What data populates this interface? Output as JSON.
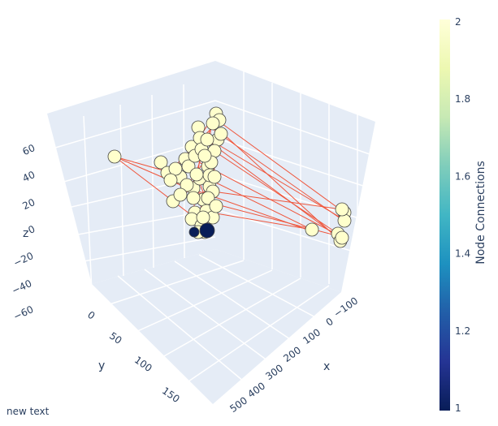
{
  "chart_data": {
    "type": "scatter3d",
    "annotation": "new text",
    "axes": {
      "x": {
        "title": "x",
        "ticks": [
          "−100",
          "0",
          "100",
          "200",
          "300",
          "400",
          "500"
        ]
      },
      "y": {
        "title": "y",
        "ticks": [
          "0",
          "50",
          "100",
          "150"
        ]
      },
      "z": {
        "title": "z",
        "ticks": [
          "60",
          "40",
          "20",
          "0",
          "−20",
          "−40",
          "−60"
        ]
      }
    },
    "colorbar": {
      "title": "Node Connections",
      "ticks": [
        "2",
        "1.8",
        "1.6",
        "1.4",
        "1.2",
        "1"
      ],
      "range": [
        1,
        2
      ],
      "colorscale": [
        "#081d58",
        "#253494",
        "#225ea8",
        "#1d91c0",
        "#41b6c4",
        "#7fcdbb",
        "#c7e9b4",
        "#edf8b1",
        "#ffffd9"
      ]
    },
    "edge_color": "#ef553b",
    "node_color_high": "#ffffcc",
    "node_color_low": "#081d58",
    "grid": true
  }
}
